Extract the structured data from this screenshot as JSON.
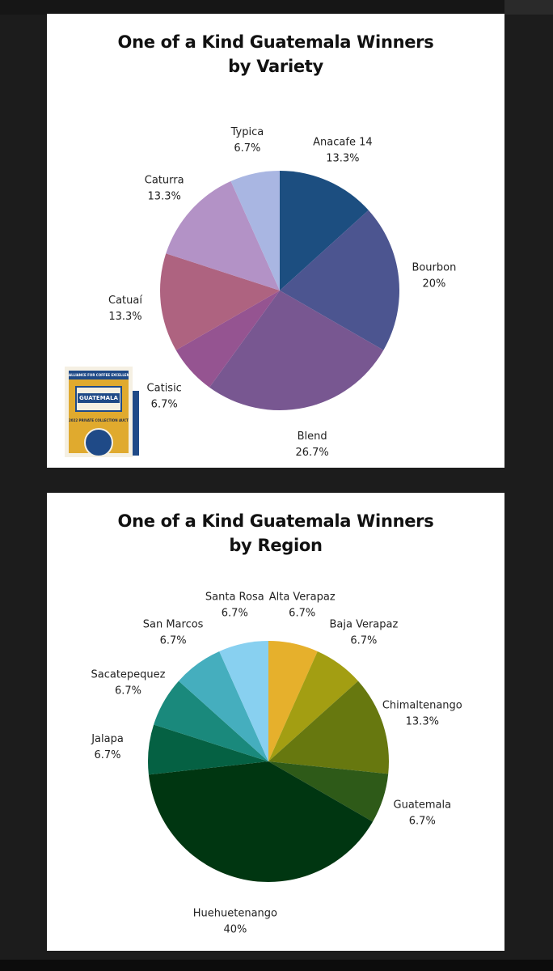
{
  "chart_data": [
    {
      "type": "pie",
      "title": "One of a Kind Guatemala Winners by Variety",
      "title_lines": [
        "One of a Kind Guatemala Winners",
        "by Variety"
      ],
      "slices": [
        {
          "label": "Anacafe 14",
          "value": 13.3,
          "value_label": "13.3%",
          "color": "#1c4e80"
        },
        {
          "label": "Bourbon",
          "value": 20,
          "value_label": "20%",
          "color": "#4c5590"
        },
        {
          "label": "Blend",
          "value": 26.7,
          "value_label": "26.7%",
          "color": "#785791"
        },
        {
          "label": "Catisic",
          "value": 6.7,
          "value_label": "6.7%",
          "color": "#955491"
        },
        {
          "label": "Catuaí",
          "value": 13.3,
          "value_label": "13.3%",
          "color": "#ae6380"
        },
        {
          "label": "Caturra",
          "value": 13.3,
          "value_label": "13.3%",
          "color": "#b392c6"
        },
        {
          "label": "Typica",
          "value": 6.7,
          "value_label": "6.7%",
          "color": "#a9b6e2"
        }
      ],
      "start": "12 o'clock",
      "direction": "clockwise"
    },
    {
      "type": "pie",
      "title": "One of a Kind Guatemala Winners by Region",
      "title_lines": [
        "One of a Kind Guatemala Winners",
        "by Region"
      ],
      "slices": [
        {
          "label": "Alta Verapaz",
          "value": 6.7,
          "value_label": "6.7%",
          "color": "#e6b02c"
        },
        {
          "label": "Baja Verapaz",
          "value": 6.7,
          "value_label": "6.7%",
          "color": "#a39e12"
        },
        {
          "label": "Chimaltenango",
          "value": 13.3,
          "value_label": "13.3%",
          "color": "#67780f"
        },
        {
          "label": "Guatemala",
          "value": 6.7,
          "value_label": "6.7%",
          "color": "#2e5a18"
        },
        {
          "label": "Huehuetenango",
          "value": 40,
          "value_label": "40%",
          "color": "#003611"
        },
        {
          "label": "Jalapa",
          "value": 6.7,
          "value_label": "6.7%",
          "color": "#056143"
        },
        {
          "label": "Sacatepequez",
          "value": 6.7,
          "value_label": "6.7%",
          "color": "#1a897c"
        },
        {
          "label": "San Marcos",
          "value": 6.7,
          "value_label": "6.7%",
          "color": "#45aebe"
        },
        {
          "label": "Santa Rosa",
          "value": 6.7,
          "value_label": "6.7%",
          "color": "#88d0f0"
        }
      ],
      "start": "12 o'clock",
      "direction": "clockwise"
    }
  ],
  "logo": {
    "text_lines": [
      "ALLIANCE FOR COFFEE EXCELLENCE",
      "ONE OF A KIND",
      "GUATEMALA",
      "COFFEE AUCTION",
      "2022 PRIVATE COLLECTION AUCTION",
      "PCA"
    ],
    "colors": {
      "gold": "#e0aa2e",
      "blue": "#1f4a87",
      "cream": "#f5f0e3"
    }
  }
}
